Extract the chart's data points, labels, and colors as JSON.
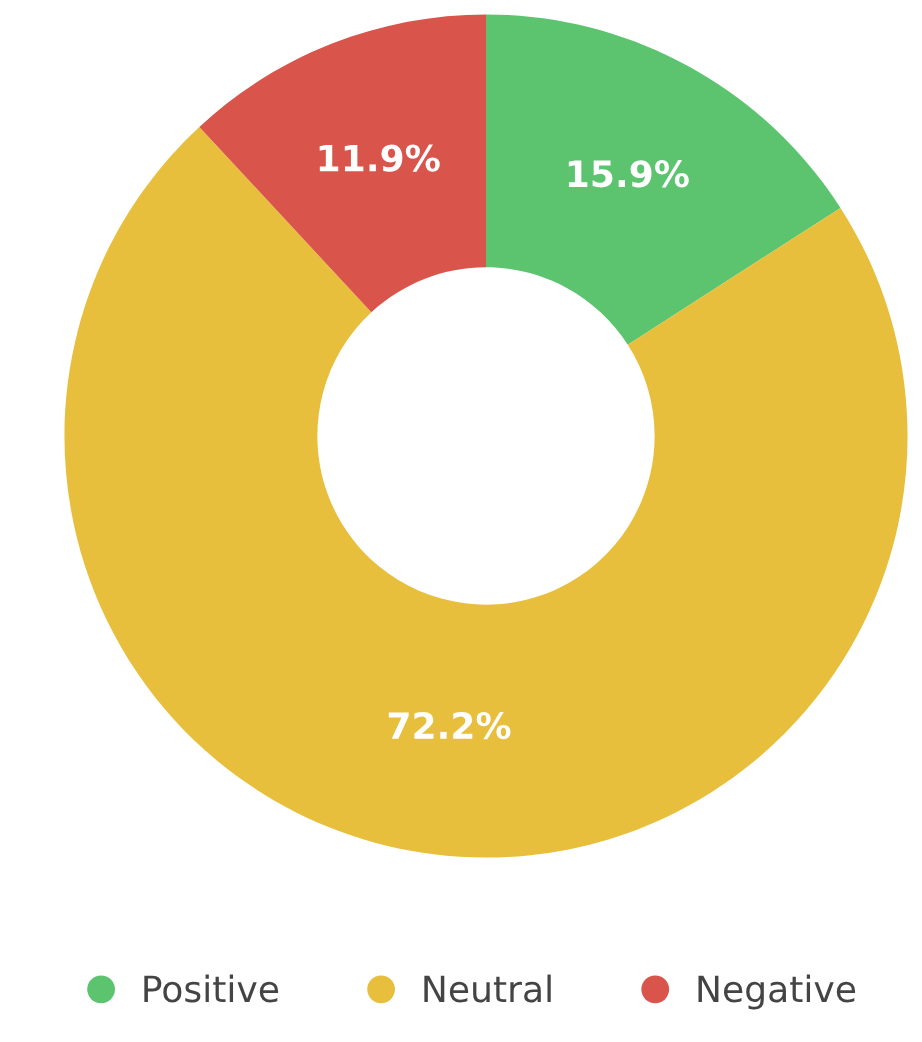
{
  "chart_data": {
    "type": "donut",
    "categories": [
      "Positive",
      "Neutral",
      "Negative"
    ],
    "values": [
      15.9,
      72.2,
      11.9
    ],
    "colors": [
      "#5cc46f",
      "#e8bf3c",
      "#d9544a"
    ],
    "value_labels": [
      "15.9%",
      "72.2%",
      "11.9%"
    ],
    "legend": "bottom"
  }
}
